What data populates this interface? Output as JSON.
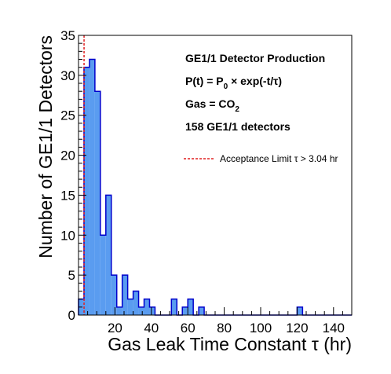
{
  "chart_data": {
    "type": "bar",
    "xlabel": "Gas Leak Time Constant τ (hr)",
    "ylabel": "Number of GE1/1 Detectors",
    "xlim": [
      0,
      150
    ],
    "ylim": [
      0,
      35
    ],
    "bin_width": 3,
    "bin_start": 0,
    "x_ticks": [
      20,
      40,
      60,
      80,
      100,
      120,
      140
    ],
    "y_ticks": [
      0,
      5,
      10,
      15,
      20,
      25,
      30,
      35
    ],
    "values": [
      2,
      31,
      32,
      28,
      10,
      15,
      5,
      1,
      5,
      2,
      3,
      1,
      2,
      1,
      0,
      0,
      0,
      2,
      0,
      1,
      2,
      0,
      1,
      0,
      0,
      0,
      0,
      0,
      0,
      0,
      0,
      0,
      0,
      0,
      0,
      0,
      0,
      0,
      0,
      0,
      1,
      0,
      0,
      0,
      0,
      0,
      0,
      0,
      0,
      0
    ],
    "fill_color": "#5a9cf0",
    "edge_color": "#0000cc",
    "annotations": [
      "GE1/1 Detector Production",
      "P(t) = P",
      "0",
      " × exp(-t/τ)",
      "Gas = CO",
      "2",
      "158 GE1/1 detectors"
    ],
    "acceptance_line": {
      "x": 3.04,
      "color": "#e02020",
      "legend": "Acceptance Limit τ > 3.04 hr"
    },
    "legend_placement": "right",
    "grid": false
  }
}
